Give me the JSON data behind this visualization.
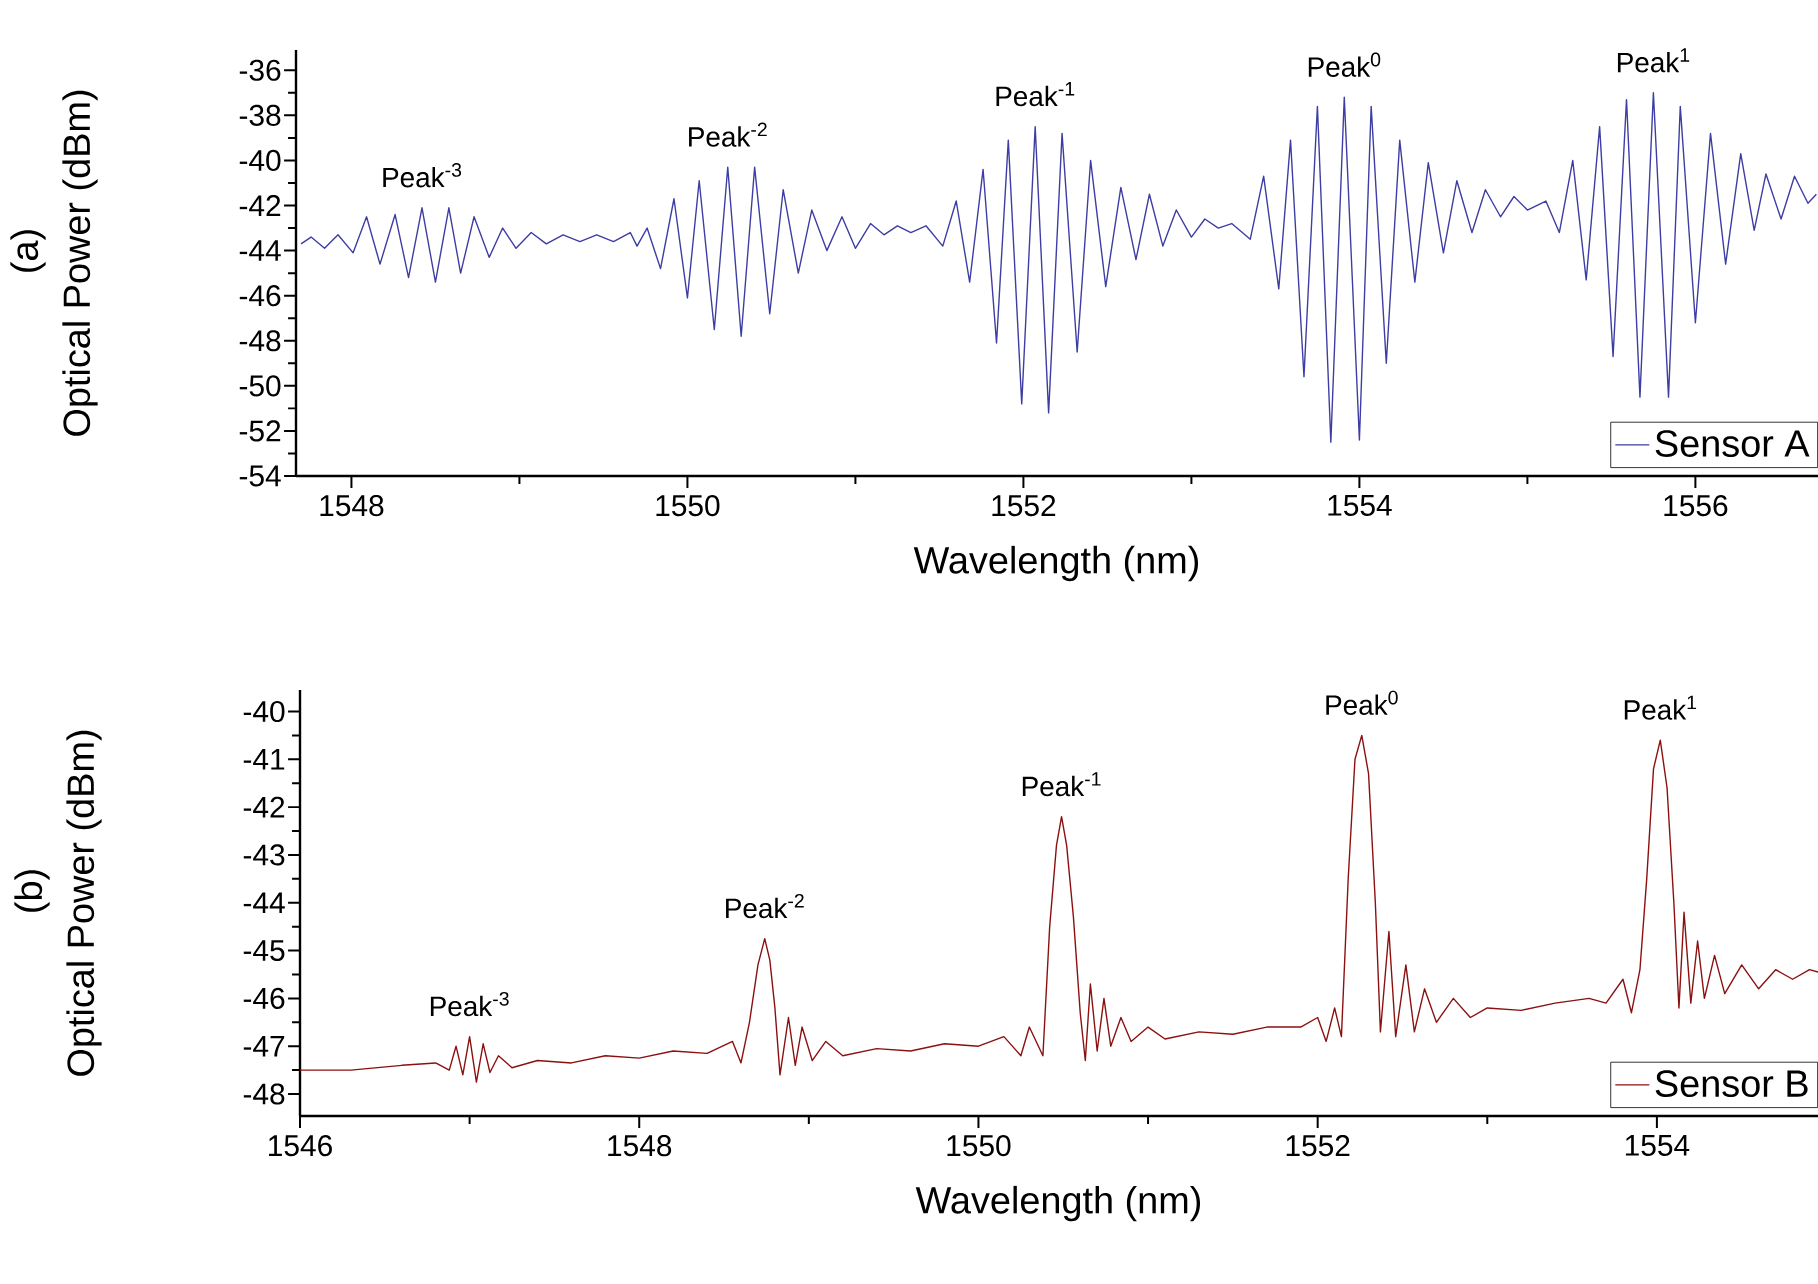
{
  "chart_data": [
    {
      "type": "line",
      "title": "(a)",
      "xlabel": "Wavelength (nm)",
      "ylabel": "Optical Power (dBm)",
      "xlim": [
        1547.67,
        1556.73
      ],
      "ylim": [
        -54,
        -35.1
      ],
      "xticks": [
        1548,
        1550,
        1552,
        1554,
        1556
      ],
      "yticks": [
        -54,
        -52,
        -50,
        -48,
        -46,
        -44,
        -42,
        -40,
        -38,
        -36
      ],
      "legend": "bottom right",
      "annotations": [
        {
          "text": "Peak$^{-3}$",
          "x": 1548.42,
          "y": -42.1
        },
        {
          "text": "Peak$^{-2}$",
          "x": 1550.24,
          "y": -40.3
        },
        {
          "text": "Peak$^{-1}$",
          "x": 1552.07,
          "y": -38.5
        },
        {
          "text": "Peak$^{0}$",
          "x": 1553.91,
          "y": -37.2
        },
        {
          "text": "Peak$^{1}$",
          "x": 1555.75,
          "y": -37.0
        }
      ],
      "x": [
        1547.7,
        1547.76,
        1547.84,
        1547.92,
        1548.01,
        1548.09,
        1548.17,
        1548.26,
        1548.34,
        1548.42,
        1548.5,
        1548.58,
        1548.65,
        1548.73,
        1548.82,
        1548.9,
        1548.98,
        1549.07,
        1549.16,
        1549.26,
        1549.36,
        1549.46,
        1549.56,
        1549.66,
        1549.7,
        1549.76,
        1549.84,
        1549.92,
        1550.0,
        1550.07,
        1550.16,
        1550.24,
        1550.32,
        1550.4,
        1550.49,
        1550.57,
        1550.66,
        1550.74,
        1550.83,
        1550.92,
        1551.0,
        1551.09,
        1551.17,
        1551.25,
        1551.33,
        1551.42,
        1551.52,
        1551.6,
        1551.68,
        1551.76,
        1551.84,
        1551.91,
        1551.99,
        1552.07,
        1552.15,
        1552.23,
        1552.32,
        1552.4,
        1552.49,
        1552.58,
        1552.67,
        1552.75,
        1552.83,
        1552.91,
        1553.0,
        1553.08,
        1553.16,
        1553.24,
        1553.35,
        1553.43,
        1553.52,
        1553.59,
        1553.67,
        1553.75,
        1553.83,
        1553.91,
        1554.0,
        1554.07,
        1554.16,
        1554.24,
        1554.33,
        1554.41,
        1554.5,
        1554.58,
        1554.67,
        1554.75,
        1554.84,
        1554.92,
        1555.0,
        1555.11,
        1555.19,
        1555.27,
        1555.35,
        1555.43,
        1555.51,
        1555.59,
        1555.67,
        1555.75,
        1555.84,
        1555.91,
        1556.0,
        1556.09,
        1556.18,
        1556.27,
        1556.35,
        1556.42,
        1556.51,
        1556.59,
        1556.67,
        1556.72
      ],
      "series": [
        {
          "name": "Sensor A",
          "color": "#3d3da3",
          "values": [
            -43.7,
            -43.4,
            -43.9,
            -43.3,
            -44.1,
            -42.5,
            -44.6,
            -42.4,
            -45.2,
            -42.1,
            -45.4,
            -42.1,
            -45.0,
            -42.5,
            -44.3,
            -43.0,
            -43.9,
            -43.2,
            -43.7,
            -43.3,
            -43.6,
            -43.3,
            -43.6,
            -43.2,
            -43.8,
            -43.0,
            -44.8,
            -41.7,
            -46.1,
            -40.9,
            -47.5,
            -40.3,
            -47.8,
            -40.3,
            -46.8,
            -41.3,
            -45.0,
            -42.2,
            -44.0,
            -42.5,
            -43.9,
            -42.8,
            -43.3,
            -42.9,
            -43.2,
            -42.9,
            -43.8,
            -41.8,
            -45.4,
            -40.4,
            -48.1,
            -39.1,
            -50.8,
            -38.5,
            -51.2,
            -38.8,
            -48.5,
            -40.0,
            -45.6,
            -41.2,
            -44.4,
            -41.5,
            -43.8,
            -42.2,
            -43.4,
            -42.6,
            -43.0,
            -42.8,
            -43.5,
            -40.7,
            -45.7,
            -39.1,
            -49.6,
            -37.6,
            -52.5,
            -37.2,
            -52.4,
            -37.6,
            -49.0,
            -39.1,
            -45.4,
            -40.1,
            -44.1,
            -40.9,
            -43.2,
            -41.3,
            -42.5,
            -41.6,
            -42.2,
            -41.8,
            -43.2,
            -40.0,
            -45.3,
            -38.5,
            -48.7,
            -37.3,
            -50.5,
            -37.0,
            -50.5,
            -37.6,
            -47.2,
            -38.8,
            -44.6,
            -39.7,
            -43.1,
            -40.6,
            -42.6,
            -40.7,
            -41.9,
            -41.5
          ]
        }
      ]
    },
    {
      "type": "line",
      "title": "(b)",
      "xlabel": "Wavelength (nm)",
      "ylabel": "Optical Power (dBm)",
      "xlim": [
        1546,
        1554.95
      ],
      "ylim": [
        -48.46,
        -39.55
      ],
      "xticks": [
        1546,
        1548,
        1550,
        1552,
        1554
      ],
      "yticks": [
        -48,
        -47,
        -46,
        -45,
        -44,
        -43,
        -42,
        -41,
        -40
      ],
      "legend": "bottom right",
      "annotations": [
        {
          "text": "Peak$^{-3}$",
          "x": 1547.0,
          "y": -46.8
        },
        {
          "text": "Peak$^{-2}$",
          "x": 1548.74,
          "y": -44.75
        },
        {
          "text": "Peak$^{-1}$",
          "x": 1550.49,
          "y": -42.2
        },
        {
          "text": "Peak$^{0}$",
          "x": 1552.26,
          "y": -40.5
        },
        {
          "text": "Peak$^{1}$",
          "x": 1554.02,
          "y": -40.6
        }
      ],
      "x": [
        1546.0,
        1546.3,
        1546.6,
        1546.8,
        1546.88,
        1546.92,
        1546.96,
        1547.0,
        1547.04,
        1547.08,
        1547.12,
        1547.17,
        1547.25,
        1547.4,
        1547.6,
        1547.8,
        1548.0,
        1548.2,
        1548.4,
        1548.55,
        1548.6,
        1548.65,
        1548.7,
        1548.74,
        1548.77,
        1548.8,
        1548.83,
        1548.88,
        1548.92,
        1548.96,
        1549.02,
        1549.1,
        1549.2,
        1549.4,
        1549.6,
        1549.8,
        1550.0,
        1550.15,
        1550.25,
        1550.3,
        1550.38,
        1550.42,
        1550.46,
        1550.49,
        1550.52,
        1550.56,
        1550.6,
        1550.63,
        1550.66,
        1550.7,
        1550.74,
        1550.78,
        1550.84,
        1550.9,
        1551.0,
        1551.1,
        1551.3,
        1551.5,
        1551.7,
        1551.9,
        1552.0,
        1552.05,
        1552.1,
        1552.14,
        1552.18,
        1552.22,
        1552.26,
        1552.3,
        1552.34,
        1552.37,
        1552.42,
        1552.46,
        1552.52,
        1552.57,
        1552.63,
        1552.7,
        1552.8,
        1552.9,
        1553.0,
        1553.2,
        1553.4,
        1553.6,
        1553.7,
        1553.8,
        1553.85,
        1553.9,
        1553.94,
        1553.98,
        1554.02,
        1554.06,
        1554.1,
        1554.13,
        1554.16,
        1554.2,
        1554.24,
        1554.28,
        1554.34,
        1554.4,
        1554.5,
        1554.6,
        1554.7,
        1554.8,
        1554.9,
        1554.95
      ],
      "series": [
        {
          "name": "Sensor B",
          "color": "#8b1010",
          "values": [
            -47.5,
            -47.5,
            -47.4,
            -47.35,
            -47.5,
            -47.0,
            -47.6,
            -46.8,
            -47.75,
            -46.95,
            -47.55,
            -47.2,
            -47.45,
            -47.3,
            -47.35,
            -47.2,
            -47.25,
            -47.1,
            -47.15,
            -46.9,
            -47.35,
            -46.5,
            -45.3,
            -44.75,
            -45.2,
            -46.2,
            -47.6,
            -46.4,
            -47.4,
            -46.6,
            -47.3,
            -46.9,
            -47.2,
            -47.05,
            -47.1,
            -46.95,
            -47.0,
            -46.8,
            -47.2,
            -46.6,
            -47.2,
            -44.5,
            -42.8,
            -42.2,
            -42.8,
            -44.3,
            -46.3,
            -47.3,
            -45.7,
            -47.1,
            -46.0,
            -47.0,
            -46.4,
            -46.9,
            -46.6,
            -46.85,
            -46.7,
            -46.75,
            -46.6,
            -46.6,
            -46.4,
            -46.9,
            -46.2,
            -46.8,
            -43.5,
            -41.0,
            -40.5,
            -41.3,
            -44.0,
            -46.7,
            -44.6,
            -46.8,
            -45.3,
            -46.7,
            -45.8,
            -46.5,
            -46.0,
            -46.4,
            -46.2,
            -46.25,
            -46.1,
            -46.0,
            -46.1,
            -45.6,
            -46.3,
            -45.4,
            -43.5,
            -41.2,
            -40.6,
            -41.6,
            -44.0,
            -46.2,
            -44.2,
            -46.1,
            -44.8,
            -46.0,
            -45.1,
            -45.9,
            -45.3,
            -45.8,
            -45.4,
            -45.6,
            -45.4,
            -45.45
          ]
        }
      ]
    }
  ]
}
